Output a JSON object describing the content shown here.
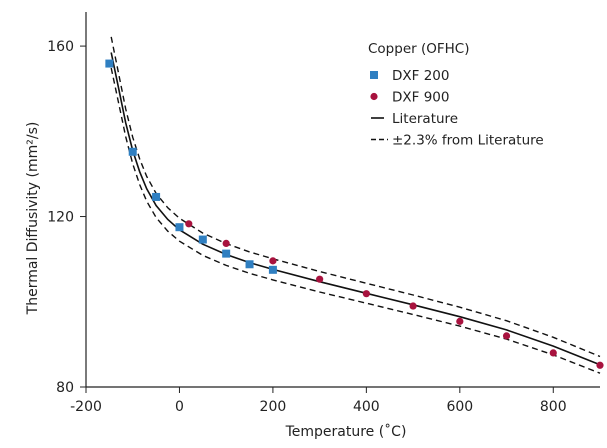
{
  "chart_data": {
    "type": "scatter",
    "xlabel": "Temperature (˚C)",
    "ylabel": "Thermal Diffusivity (mm²/s)",
    "xlim": [
      -200,
      900
    ],
    "ylim": [
      80,
      168
    ],
    "x_ticks": [
      -200,
      0,
      200,
      400,
      600,
      800
    ],
    "y_ticks": [
      80,
      120,
      160
    ],
    "x_tick_labels": [
      "-200",
      "0",
      "200",
      "400",
      "600",
      "800"
    ],
    "y_tick_labels": [
      "80",
      "120",
      "160"
    ],
    "grid": false,
    "legend_position": "top-right",
    "legend_title": "Copper (OFHC)",
    "series": [
      {
        "name": "DXF 200",
        "kind": "points",
        "marker": "square",
        "color": "#2f7fc1",
        "points": [
          [
            -150,
            155.9
          ],
          [
            -100,
            135.2
          ],
          [
            -50,
            124.6
          ],
          [
            0,
            117.5
          ],
          [
            50,
            114.6
          ],
          [
            100,
            111.3
          ],
          [
            150,
            108.8
          ],
          [
            200,
            107.5
          ]
        ]
      },
      {
        "name": "DXF 900",
        "kind": "points",
        "marker": "circle",
        "color": "#a8123e",
        "points": [
          [
            20,
            118.3
          ],
          [
            100,
            113.7
          ],
          [
            200,
            109.6
          ],
          [
            300,
            105.3
          ],
          [
            400,
            101.9
          ],
          [
            500,
            99.0
          ],
          [
            600,
            95.4
          ],
          [
            700,
            92.0
          ],
          [
            800,
            88.0
          ],
          [
            900,
            85.1
          ]
        ]
      },
      {
        "name": "Literature",
        "kind": "line",
        "style": "solid",
        "color": "#111111",
        "points": [
          [
            -146,
            158.5
          ],
          [
            -130,
            150.0
          ],
          [
            -115,
            142.0
          ],
          [
            -100,
            135.5
          ],
          [
            -85,
            130.5
          ],
          [
            -70,
            126.5
          ],
          [
            -50,
            122.6
          ],
          [
            -25,
            119.3
          ],
          [
            0,
            116.9
          ],
          [
            50,
            113.5
          ],
          [
            100,
            111.1
          ],
          [
            150,
            109.2
          ],
          [
            200,
            107.6
          ],
          [
            300,
            104.7
          ],
          [
            400,
            102.0
          ],
          [
            500,
            99.3
          ],
          [
            600,
            96.5
          ],
          [
            700,
            93.4
          ],
          [
            800,
            89.6
          ],
          [
            900,
            85.2
          ]
        ]
      },
      {
        "name": "±2.3% from Literature",
        "kind": "band",
        "style": "dashed",
        "color": "#111111",
        "percent": 2.3
      }
    ]
  }
}
